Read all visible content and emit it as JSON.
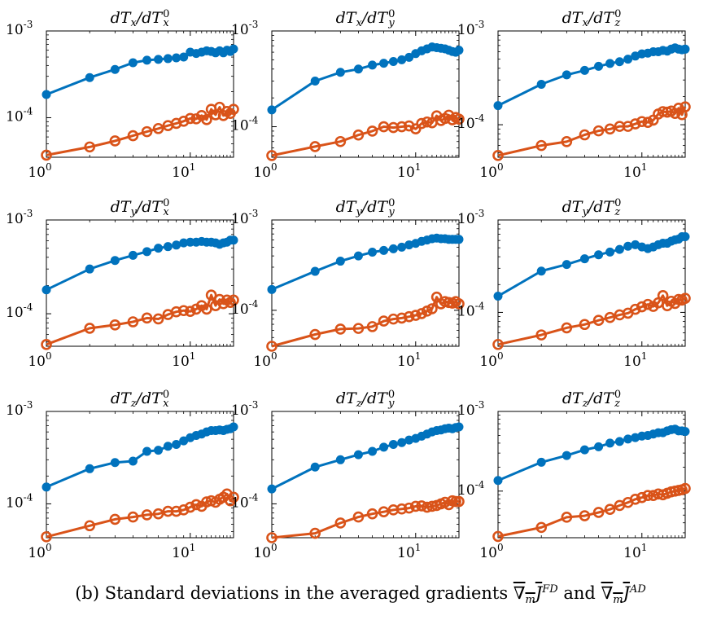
{
  "colors": {
    "series_fd": "#0072BD",
    "series_ad": "#D95319",
    "axis": "#000000"
  },
  "caption": {
    "prefix": "(b) Standard deviations in the averaged gradients",
    "conj": "and",
    "grad_symbol": "∇",
    "sub": "m",
    "fn": "J",
    "sup_fd": "FD",
    "sup_ad": "AD"
  },
  "chart_data": [
    {
      "type": "line",
      "title": "dTx/dTx0",
      "title_num": "T",
      "title_num_sub": "x",
      "title_den": "T",
      "title_den_sub": "x",
      "title_den_sup": "0",
      "xscale": "log",
      "yscale": "log",
      "xlim": [
        1,
        20
      ],
      "ylim": [
        3.5e-05,
        0.001
      ],
      "x_ticks": [
        {
          "base": "10",
          "exp": "0"
        },
        {
          "base": "10",
          "exp": "1"
        }
      ],
      "y_ticks": [
        {
          "base": "10",
          "exp": "-4"
        },
        {
          "base": "10",
          "exp": "-3"
        }
      ],
      "x": [
        1,
        2,
        3,
        4,
        5,
        6,
        7,
        8,
        9,
        10,
        11,
        12,
        13,
        14,
        15,
        16,
        17,
        18,
        19,
        20
      ],
      "series": [
        {
          "marker": "filled-circle",
          "values": [
            0.000185,
            0.00029,
            0.00036,
            0.00043,
            0.00046,
            0.00047,
            0.00048,
            0.00049,
            0.0005,
            0.00057,
            0.00055,
            0.00057,
            0.00059,
            0.00058,
            0.00056,
            0.00059,
            0.00056,
            0.0006,
            0.00058,
            0.00062
          ]
        },
        {
          "marker": "open-circle",
          "values": [
            3.7e-05,
            4.6e-05,
            5.4e-05,
            6.2e-05,
            6.9e-05,
            7.5e-05,
            8.1e-05,
            8.6e-05,
            9.1e-05,
            9.8e-05,
            9.7e-05,
            0.000106,
            9.5e-05,
            0.000125,
            0.000108,
            0.000132,
            0.000106,
            0.000118,
            0.000112,
            0.000125
          ]
        }
      ]
    },
    {
      "type": "line",
      "title": "dTx/dTy0",
      "title_num": "T",
      "title_num_sub": "x",
      "title_den": "T",
      "title_den_sub": "y",
      "title_den_sup": "0",
      "xscale": "log",
      "yscale": "log",
      "xlim": [
        1,
        20
      ],
      "ylim": [
        4.8e-05,
        0.001
      ],
      "x_ticks": [
        {
          "base": "10",
          "exp": "0"
        },
        {
          "base": "10",
          "exp": "1"
        }
      ],
      "y_ticks": [
        {
          "base": "10",
          "exp": "-4"
        },
        {
          "base": "10",
          "exp": "-3"
        }
      ],
      "x": [
        1,
        2,
        3,
        4,
        5,
        6,
        7,
        8,
        9,
        10,
        11,
        12,
        13,
        14,
        15,
        16,
        17,
        18,
        19,
        20
      ],
      "series": [
        {
          "marker": "filled-circle",
          "values": [
            0.00015,
            0.0003,
            0.00037,
            0.0004,
            0.00044,
            0.00046,
            0.00048,
            0.0005,
            0.00053,
            0.00058,
            0.00062,
            0.00065,
            0.00068,
            0.00067,
            0.00066,
            0.00065,
            0.00063,
            0.00061,
            0.0006,
            0.00063
          ]
        },
        {
          "marker": "open-circle",
          "values": [
            5e-05,
            6.2e-05,
            7e-05,
            8.2e-05,
            9e-05,
            0.0001,
            9.8e-05,
            0.0001,
            0.000102,
            9.5e-05,
            0.000108,
            0.000112,
            0.00011,
            0.00013,
            0.000116,
            0.000122,
            0.000132,
            0.000118,
            0.000125,
            0.00012
          ]
        }
      ]
    },
    {
      "type": "line",
      "title": "dTx/dTz0",
      "title_num": "T",
      "title_num_sub": "x",
      "title_den": "T",
      "title_den_sub": "z",
      "title_den_sup": "0",
      "xscale": "log",
      "yscale": "log",
      "xlim": [
        1,
        20
      ],
      "ylim": [
        4.5e-05,
        0.001
      ],
      "x_ticks": [
        {
          "base": "10",
          "exp": "0"
        },
        {
          "base": "10",
          "exp": "1"
        }
      ],
      "y_ticks": [
        {
          "base": "10",
          "exp": "-4"
        },
        {
          "base": "10",
          "exp": "-3"
        }
      ],
      "x": [
        1,
        2,
        3,
        4,
        5,
        6,
        7,
        8,
        9,
        10,
        11,
        12,
        13,
        14,
        15,
        16,
        17,
        18,
        19,
        20
      ],
      "series": [
        {
          "marker": "filled-circle",
          "values": [
            0.00016,
            0.00027,
            0.00034,
            0.00038,
            0.00042,
            0.00045,
            0.00047,
            0.0005,
            0.00054,
            0.00057,
            0.00058,
            0.0006,
            0.0006,
            0.00062,
            0.00061,
            0.00064,
            0.00066,
            0.00064,
            0.00063,
            0.00064
          ]
        },
        {
          "marker": "open-circle",
          "values": [
            4.7e-05,
            6e-05,
            6.6e-05,
            7.8e-05,
            8.6e-05,
            9e-05,
            9.6e-05,
            9.6e-05,
            0.000102,
            0.000108,
            0.000106,
            0.000112,
            0.00013,
            0.000138,
            0.000136,
            0.00014,
            0.000132,
            0.00015,
            0.000128,
            0.000155
          ]
        }
      ]
    },
    {
      "type": "line",
      "title": "dTy/dTx0",
      "title_num": "T",
      "title_num_sub": "y",
      "title_den": "T",
      "title_den_sub": "x",
      "title_den_sup": "0",
      "xscale": "log",
      "yscale": "log",
      "xlim": [
        1,
        20
      ],
      "ylim": [
        4.5e-05,
        0.001
      ],
      "x_ticks": [
        {
          "base": "10",
          "exp": "0"
        },
        {
          "base": "10",
          "exp": "1"
        }
      ],
      "y_ticks": [
        {
          "base": "10",
          "exp": "-4"
        },
        {
          "base": "10",
          "exp": "-3"
        }
      ],
      "x": [
        1,
        2,
        3,
        4,
        5,
        6,
        7,
        8,
        9,
        10,
        11,
        12,
        13,
        14,
        15,
        16,
        17,
        18,
        19,
        20
      ],
      "series": [
        {
          "marker": "filled-circle",
          "values": [
            0.00018,
            0.0003,
            0.00037,
            0.00042,
            0.00046,
            0.0005,
            0.00052,
            0.00054,
            0.00057,
            0.00058,
            0.00058,
            0.00059,
            0.00058,
            0.00058,
            0.00057,
            0.00055,
            0.00057,
            0.00058,
            0.00061,
            0.00061
          ]
        },
        {
          "marker": "open-circle",
          "values": [
            4.7e-05,
            7e-05,
            7.6e-05,
            8.2e-05,
            9e-05,
            8.8e-05,
            9.8e-05,
            0.000105,
            0.000108,
            0.000106,
            0.000112,
            0.000122,
            0.000112,
            0.000158,
            0.000122,
            0.000142,
            0.000128,
            0.00014,
            0.000132,
            0.00014
          ]
        }
      ]
    },
    {
      "type": "line",
      "title": "dTy/dTy0",
      "title_num": "T",
      "title_num_sub": "y",
      "title_den": "T",
      "title_den_sub": "y",
      "title_den_sup": "0",
      "xscale": "log",
      "yscale": "log",
      "xlim": [
        1,
        20
      ],
      "ylim": [
        4e-05,
        0.001
      ],
      "x_ticks": [
        {
          "base": "10",
          "exp": "0"
        },
        {
          "base": "10",
          "exp": "1"
        }
      ],
      "y_ticks": [
        {
          "base": "10",
          "exp": "-4"
        },
        {
          "base": "10",
          "exp": "-3"
        }
      ],
      "x": [
        1,
        2,
        3,
        4,
        5,
        6,
        7,
        8,
        9,
        10,
        11,
        12,
        13,
        14,
        15,
        16,
        17,
        18,
        19,
        20
      ],
      "series": [
        {
          "marker": "filled-circle",
          "values": [
            0.00017,
            0.00027,
            0.00035,
            0.0004,
            0.00044,
            0.00046,
            0.00048,
            0.0005,
            0.00053,
            0.00055,
            0.00058,
            0.0006,
            0.00062,
            0.00063,
            0.00062,
            0.00062,
            0.00061,
            0.00061,
            0.00061,
            0.00061
          ]
        },
        {
          "marker": "open-circle",
          "values": [
            4e-05,
            5.4e-05,
            6.2e-05,
            6.3e-05,
            6.6e-05,
            7.6e-05,
            8e-05,
            8.2e-05,
            8.5e-05,
            8.8e-05,
            9.2e-05,
            9.8e-05,
            0.000104,
            0.00014,
            0.000118,
            0.000125,
            0.000122,
            0.00012,
            0.000125,
            0.000118
          ]
        }
      ]
    },
    {
      "type": "line",
      "title": "dTy/dTz0",
      "title_num": "T",
      "title_num_sub": "y",
      "title_den": "T",
      "title_den_sub": "z",
      "title_den_sup": "0",
      "xscale": "log",
      "yscale": "log",
      "xlim": [
        1,
        20
      ],
      "ylim": [
        4.3e-05,
        0.001
      ],
      "x_ticks": [
        {
          "base": "10",
          "exp": "0"
        },
        {
          "base": "10",
          "exp": "1"
        }
      ],
      "y_ticks": [
        {
          "base": "10",
          "exp": "-4"
        },
        {
          "base": "10",
          "exp": "-3"
        }
      ],
      "x": [
        1,
        2,
        3,
        4,
        5,
        6,
        7,
        8,
        9,
        10,
        11,
        12,
        13,
        14,
        15,
        16,
        17,
        18,
        19,
        20
      ],
      "series": [
        {
          "marker": "filled-circle",
          "values": [
            0.00015,
            0.00028,
            0.00033,
            0.00038,
            0.00042,
            0.00045,
            0.00048,
            0.00052,
            0.00054,
            0.00051,
            0.00049,
            0.00051,
            0.00054,
            0.00056,
            0.00056,
            0.00059,
            0.00061,
            0.00062,
            0.00066,
            0.00066
          ]
        },
        {
          "marker": "open-circle",
          "values": [
            4.5e-05,
            5.7e-05,
            6.8e-05,
            7.4e-05,
            8.2e-05,
            8.8e-05,
            9.4e-05,
            9.8e-05,
            0.000108,
            0.000115,
            0.000122,
            0.000116,
            0.000127,
            0.000152,
            0.000118,
            0.000132,
            0.000125,
            0.000138,
            0.000136,
            0.000142
          ]
        }
      ]
    },
    {
      "type": "line",
      "title": "dTz/dTx0",
      "title_num": "T",
      "title_num_sub": "z",
      "title_den": "T",
      "title_den_sub": "x",
      "title_den_sup": "0",
      "xscale": "log",
      "yscale": "log",
      "xlim": [
        1,
        20
      ],
      "ylim": [
        4.3e-05,
        0.001
      ],
      "x_ticks": [
        {
          "base": "10",
          "exp": "0"
        },
        {
          "base": "10",
          "exp": "1"
        }
      ],
      "y_ticks": [
        {
          "base": "10",
          "exp": "-4"
        },
        {
          "base": "10",
          "exp": "-3"
        }
      ],
      "x": [
        1,
        2,
        3,
        4,
        5,
        6,
        7,
        8,
        9,
        10,
        11,
        12,
        13,
        14,
        15,
        16,
        17,
        18,
        19,
        20
      ],
      "series": [
        {
          "marker": "filled-circle",
          "values": [
            0.000152,
            0.00024,
            0.00028,
            0.00029,
            0.00037,
            0.00038,
            0.00042,
            0.00044,
            0.00048,
            0.00052,
            0.00055,
            0.00057,
            0.0006,
            0.00062,
            0.00062,
            0.00063,
            0.00062,
            0.00064,
            0.00065,
            0.00068
          ]
        },
        {
          "marker": "open-circle",
          "values": [
            4.4e-05,
            5.8e-05,
            6.8e-05,
            7.2e-05,
            7.6e-05,
            7.8e-05,
            8.3e-05,
            8.3e-05,
            8.6e-05,
            9.2e-05,
            9.8e-05,
            9.4e-05,
            0.000105,
            0.000108,
            0.000104,
            0.000112,
            0.000118,
            0.000128,
            0.000108,
            0.000118
          ]
        }
      ]
    },
    {
      "type": "line",
      "title": "dTz/dTy0",
      "title_num": "T",
      "title_num_sub": "z",
      "title_den": "T",
      "title_den_sub": "y",
      "title_den_sup": "0",
      "xscale": "log",
      "yscale": "log",
      "xlim": [
        1,
        20
      ],
      "ylim": [
        4.3e-05,
        0.001
      ],
      "x_ticks": [
        {
          "base": "10",
          "exp": "0"
        },
        {
          "base": "10",
          "exp": "1"
        }
      ],
      "y_ticks": [
        {
          "base": "10",
          "exp": "-4"
        },
        {
          "base": "10",
          "exp": "-3"
        }
      ],
      "x": [
        1,
        2,
        3,
        4,
        5,
        6,
        7,
        8,
        9,
        10,
        11,
        12,
        13,
        14,
        15,
        16,
        17,
        18,
        19,
        20
      ],
      "series": [
        {
          "marker": "filled-circle",
          "values": [
            0.000145,
            0.00025,
            0.0003,
            0.00034,
            0.00037,
            0.00041,
            0.00044,
            0.00046,
            0.00049,
            0.00051,
            0.00054,
            0.00057,
            0.0006,
            0.00062,
            0.00063,
            0.00065,
            0.00066,
            0.00065,
            0.00067,
            0.00068
          ]
        },
        {
          "marker": "open-circle",
          "values": [
            4.3e-05,
            4.8e-05,
            6.2e-05,
            7.2e-05,
            7.8e-05,
            8.2e-05,
            8.6e-05,
            8.8e-05,
            9e-05,
            9.4e-05,
            9.5e-05,
            9.2e-05,
            9.4e-05,
            9.6e-05,
            0.0001,
            0.000104,
            9.8e-05,
            0.000108,
            0.000106,
            0.000106
          ]
        }
      ]
    },
    {
      "type": "line",
      "title": "dTz/dTz0",
      "title_num": "T",
      "title_num_sub": "z",
      "title_den": "T",
      "title_den_sub": "z",
      "title_den_sup": "0",
      "xscale": "log",
      "yscale": "log",
      "xlim": [
        1,
        20
      ],
      "ylim": [
        2.6e-05,
        0.001
      ],
      "x_ticks": [
        {
          "base": "10",
          "exp": "0"
        },
        {
          "base": "10",
          "exp": "1"
        }
      ],
      "y_ticks": [
        {
          "base": "10",
          "exp": "-4"
        },
        {
          "base": "10",
          "exp": "-3"
        }
      ],
      "x": [
        1,
        2,
        3,
        4,
        5,
        6,
        7,
        8,
        9,
        10,
        11,
        12,
        13,
        14,
        15,
        16,
        17,
        18,
        19,
        20
      ],
      "series": [
        {
          "marker": "filled-circle",
          "values": [
            0.000136,
            0.00023,
            0.00028,
            0.00033,
            0.00036,
            0.0004,
            0.00042,
            0.00045,
            0.00047,
            0.00049,
            0.0005,
            0.00052,
            0.00054,
            0.00054,
            0.00057,
            0.00059,
            0.0006,
            0.00057,
            0.00057,
            0.00056
          ]
        },
        {
          "marker": "open-circle",
          "values": [
            2.7e-05,
            3.5e-05,
            4.7e-05,
            4.9e-05,
            5.4e-05,
            5.9e-05,
            6.6e-05,
            7.2e-05,
            7.9e-05,
            8.3e-05,
            8.8e-05,
            8.8e-05,
            9.2e-05,
            9e-05,
            9.4e-05,
            9.8e-05,
            0.0001,
            0.000102,
            0.000104,
            0.000108
          ]
        }
      ]
    }
  ]
}
